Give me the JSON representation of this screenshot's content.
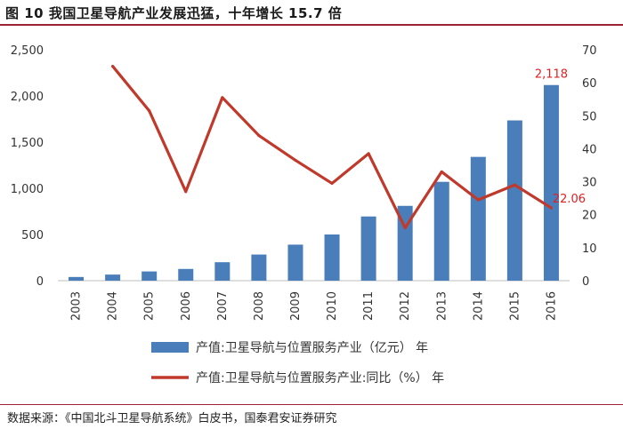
{
  "figure": {
    "title": "图 10  我国卫星导航产业发展迅猛，十年增长 15.7 倍",
    "source": "数据来源：《中国北斗卫星导航系统》白皮书，国泰君安证券研究"
  },
  "chart_data": {
    "type": "bar+line",
    "categories": [
      "2003",
      "2004",
      "2005",
      "2006",
      "2007",
      "2008",
      "2009",
      "2010",
      "2011",
      "2012",
      "2013",
      "2014",
      "2015",
      "2016"
    ],
    "series": [
      {
        "name": "产值:卫星导航与位置服务产业（亿元）  年",
        "type": "bar",
        "axis": "left",
        "color": "#4a7ebb",
        "values": [
          40,
          66,
          100,
          127,
          200,
          283,
          390,
          500,
          695,
          810,
          1070,
          1340,
          1735,
          2118
        ]
      },
      {
        "name": "产值:卫星导航与位置服务产业:同比（%）  年",
        "type": "line",
        "axis": "right",
        "color": "#c0392b",
        "values": [
          null,
          65,
          51.5,
          27,
          55.5,
          44,
          36.5,
          29.5,
          38.5,
          16,
          33,
          24.5,
          29,
          22.06
        ]
      }
    ],
    "y_left": {
      "ylim": [
        0,
        2500
      ],
      "ticks": [
        0,
        500,
        1000,
        1500,
        2000,
        2500
      ],
      "tick_labels": [
        "0",
        "500",
        "1,000",
        "1,500",
        "2,000",
        "2,500"
      ]
    },
    "y_right": {
      "ylim": [
        0,
        70
      ],
      "ticks": [
        0,
        10,
        20,
        30,
        40,
        50,
        60,
        70
      ],
      "tick_labels": [
        "0",
        "10",
        "20",
        "30",
        "40",
        "50",
        "60",
        "70"
      ]
    },
    "annotations": [
      {
        "series": 0,
        "index": 13,
        "text": "2,118",
        "color": "#e02020"
      },
      {
        "series": 1,
        "index": 13,
        "text": "22.06",
        "color": "#e02020"
      }
    ],
    "grid": false,
    "legend_position": "bottom"
  }
}
